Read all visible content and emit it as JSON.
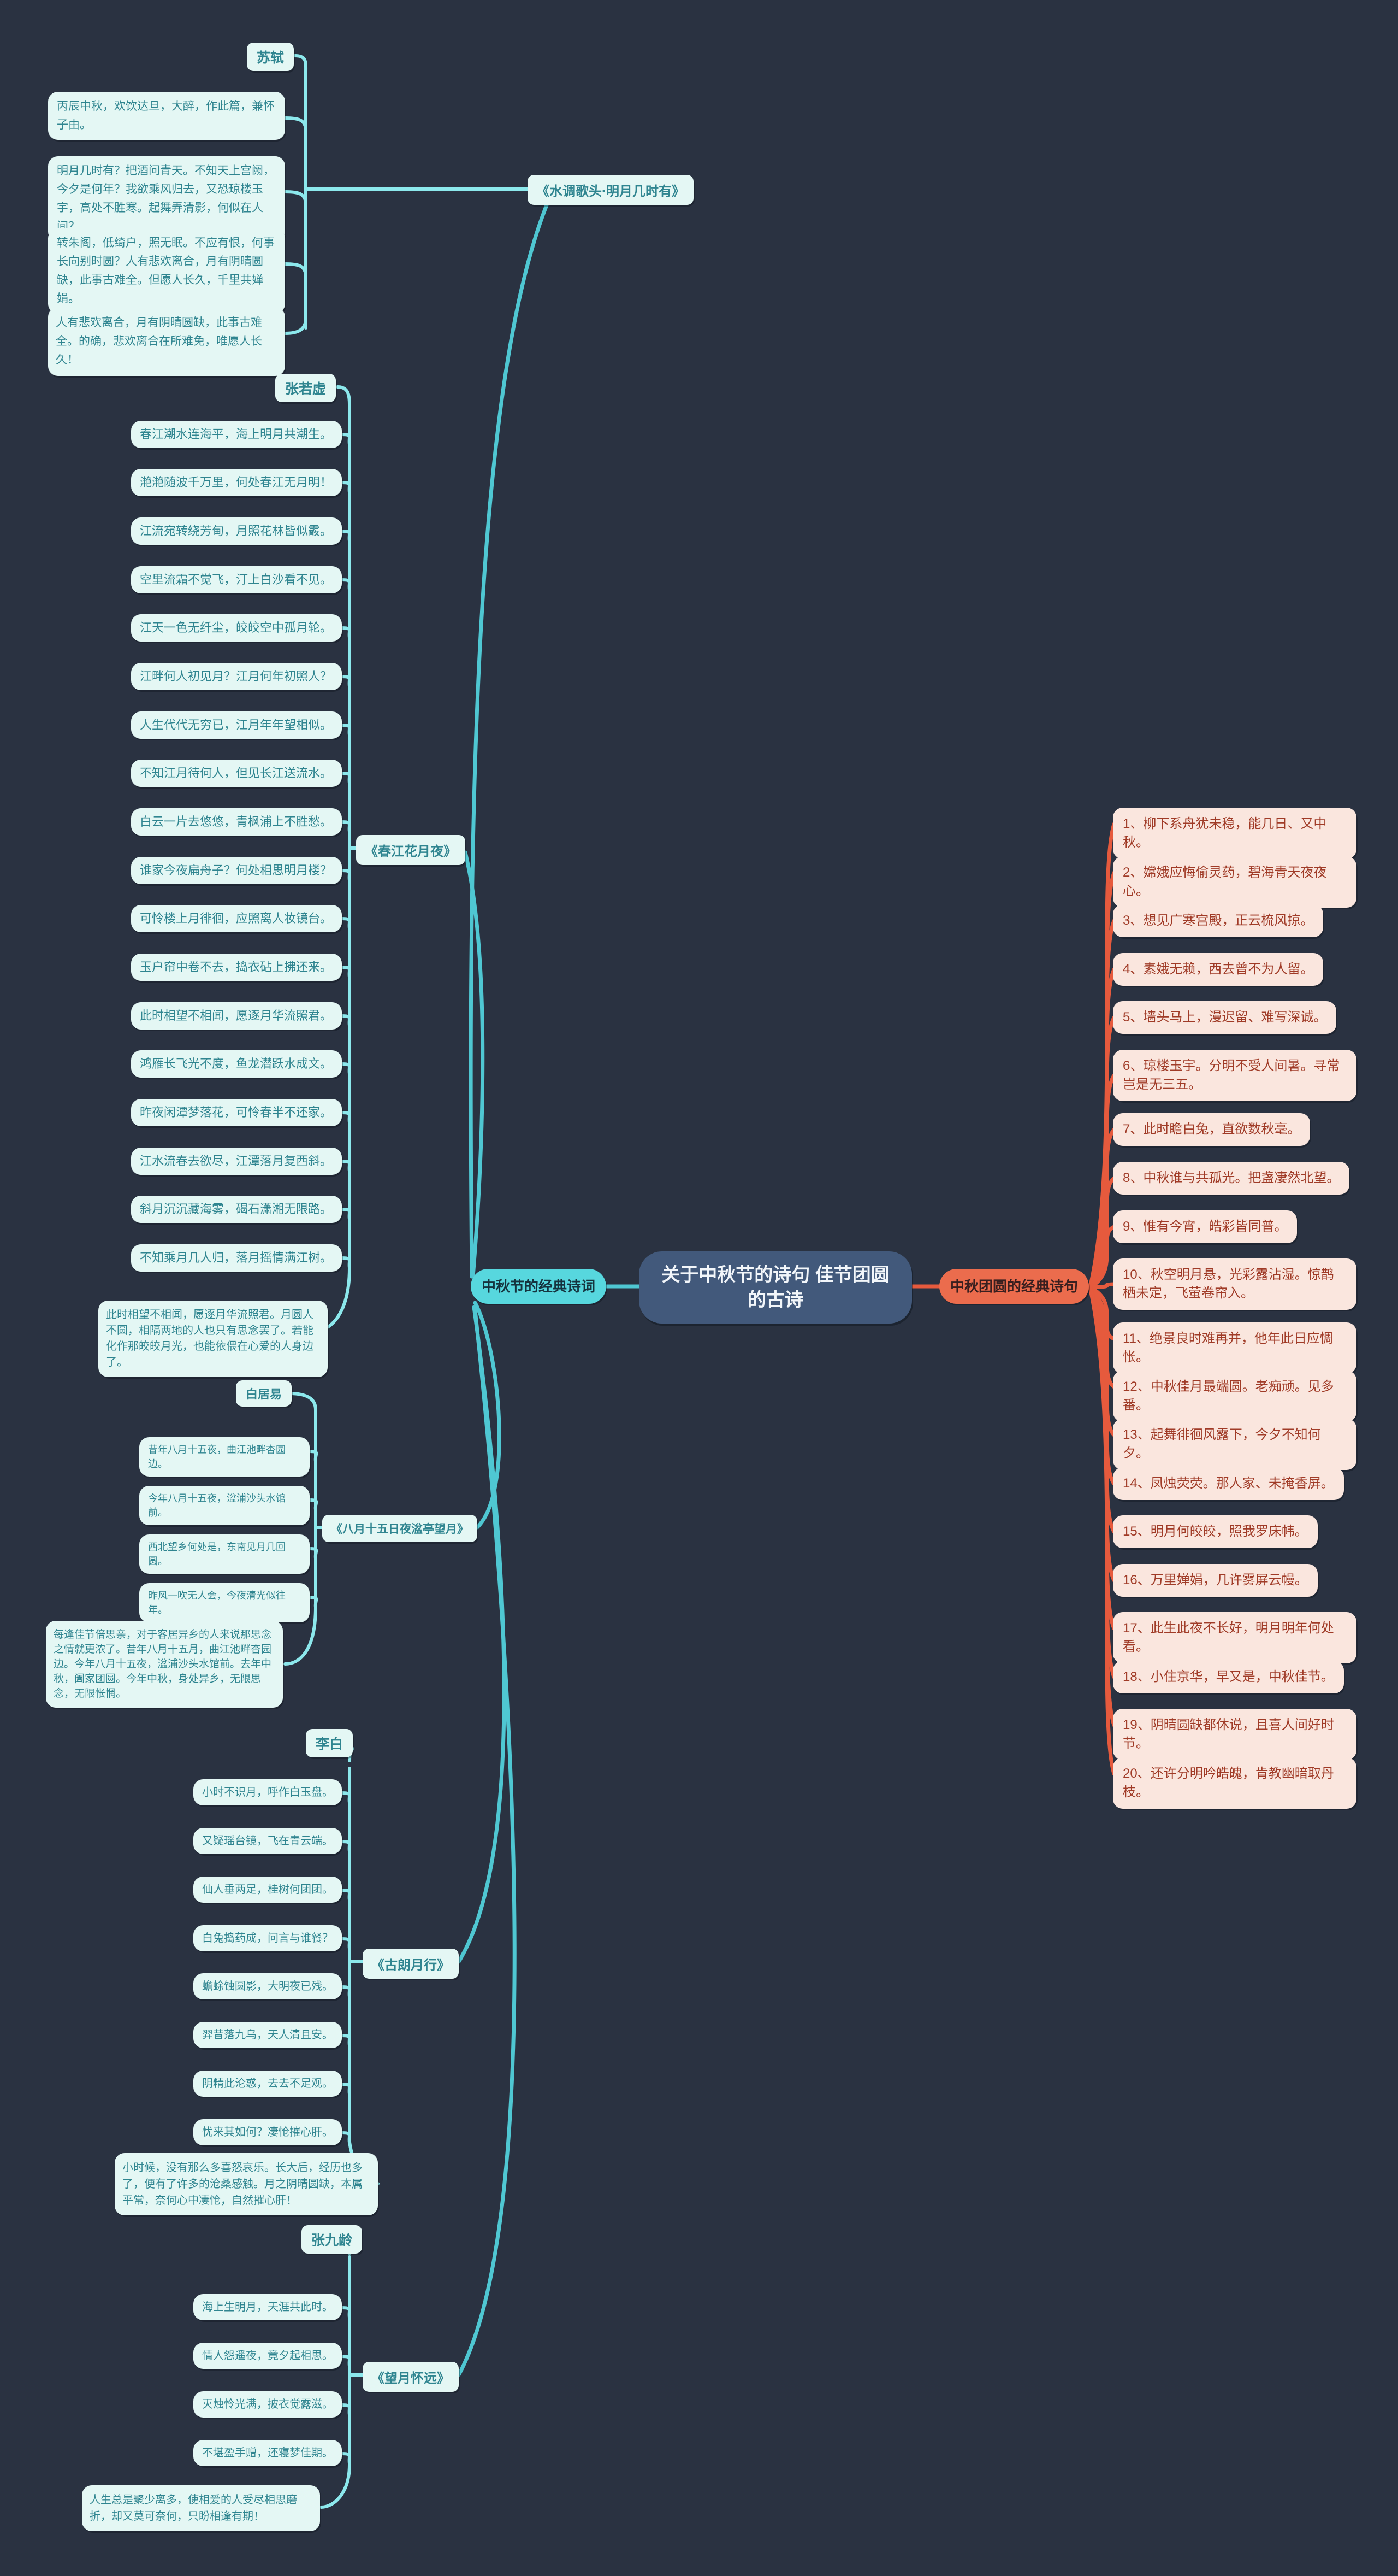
{
  "colors": {
    "background": "#2a3241",
    "cyan_box": "#e4f7f4",
    "cyan_text": "#2f8590",
    "cyan_line": "#8ce8ec",
    "cyan_dark": "#4fc7d2",
    "teal_pill": "#57d7de",
    "orange_pill": "#eb6c4d",
    "red_line": "#e65a3d",
    "pink_box": "#fae6de",
    "pink_text": "#a03b27",
    "center_node": "#42597b"
  },
  "center": {
    "main": "关于中秋节的诗句 佳节团圆的古诗",
    "left_pill": "中秋节的经典诗词",
    "right_pill": "中秋团圆的经典诗句"
  },
  "left": {
    "poets": [
      {
        "name": "苏轼",
        "work": "《水调歌头·明月几时有》",
        "lines": [
          "丙辰中秋，欢饮达旦，大醉，作此篇，兼怀子由。",
          "明月几时有？把酒问青天。不知天上宫阙，今夕是何年？我欲乘风归去，又恐琼楼玉宇，高处不胜寒。起舞弄清影，何似在人间？",
          "转朱阁，低绮户，照无眠。不应有恨，何事长向别时圆？人有悲欢离合，月有阴晴圆缺，此事古难全。但愿人长久，千里共婵娟。"
        ],
        "note": "人有悲欢离合，月有阴晴圆缺，此事古难全。的确，悲欢离合在所难免，唯愿人长久！"
      },
      {
        "name": "张若虚",
        "work": "《春江花月夜》",
        "lines": [
          "春江潮水连海平，海上明月共潮生。",
          "滟滟随波千万里，何处春江无月明！",
          "江流宛转绕芳甸，月照花林皆似霰。",
          "空里流霜不觉飞，汀上白沙看不见。",
          "江天一色无纤尘，皎皎空中孤月轮。",
          "江畔何人初见月？江月何年初照人？",
          "人生代代无穷已，江月年年望相似。",
          "不知江月待何人，但见长江送流水。",
          "白云一片去悠悠，青枫浦上不胜愁。",
          "谁家今夜扁舟子？何处相思明月楼？",
          "可怜楼上月徘徊，应照离人妆镜台。",
          "玉户帘中卷不去，捣衣砧上拂还来。",
          "此时相望不相闻，愿逐月华流照君。",
          "鸿雁长飞光不度，鱼龙潜跃水成文。",
          "昨夜闲潭梦落花，可怜春半不还家。",
          "江水流春去欲尽，江潭落月复西斜。",
          "斜月沉沉藏海雾，碣石潇湘无限路。",
          "不知乘月几人归，落月摇情满江树。"
        ],
        "note": "此时相望不相闻，愿逐月华流照君。月圆人不圆，相隔两地的人也只有思念罢了。若能化作那皎皎月光，也能依偎在心爱的人身边了。"
      },
      {
        "name": "白居易",
        "work": "《八月十五日夜湓亭望月》",
        "lines": [
          "昔年八月十五夜，曲江池畔杏园边。",
          "今年八月十五夜，湓浦沙头水馆前。",
          "西北望乡何处是，东南见月几回圆。",
          "昨风一吹无人会，今夜清光似往年。"
        ],
        "note": "每逢佳节倍思亲，对于客居异乡的人来说那思念之情就更浓了。昔年八月十五月，曲江池畔杏园边。今年八月十五夜，湓浦沙头水馆前。去年中秋，阖家团圆。今年中秋，身处异乡，无限思念，无限怅惘。"
      },
      {
        "name": "李白",
        "work": "《古朗月行》",
        "lines": [
          "小时不识月，呼作白玉盘。",
          "又疑瑶台镜，飞在青云端。",
          "仙人垂两足，桂树何团团。",
          "白兔捣药成，问言与谁餐？",
          "蟾蜍蚀圆影，大明夜已残。",
          "羿昔落九乌，天人清且安。",
          "阴精此沦惑，去去不足观。",
          "忧来其如何？凄怆摧心肝。"
        ],
        "note": "小时候，没有那么多喜怒哀乐。长大后，经历也多了，便有了许多的沧桑感触。月之阴晴圆缺，本属平常，奈何心中凄怆，自然摧心肝！"
      },
      {
        "name": "张九龄",
        "work": "《望月怀远》",
        "lines": [
          "海上生明月，天涯共此时。",
          "情人怨遥夜，竟夕起相思。",
          "灭烛怜光满，披衣觉露滋。",
          "不堪盈手赠，还寝梦佳期。"
        ],
        "note": "人生总是聚少离多，使相爱的人受尽相思磨折，却又莫可奈何，只盼相逢有期！"
      }
    ]
  },
  "right": {
    "items": [
      "1、柳下系舟犹未稳，能几日、又中秋。",
      "2、嫦娥应悔偷灵药，碧海青天夜夜心。",
      "3、想见广寒宫殿，正云梳风掠。",
      "4、素娥无赖，西去曾不为人留。",
      "5、墙头马上，漫迟留、难写深诚。",
      "6、琼楼玉宇。分明不受人间暑。寻常岂是无三五。",
      "7、此时瞻白兔，直欲数秋毫。",
      "8、中秋谁与共孤光。把盏凄然北望。",
      "9、惟有今宵，皓彩皆同普。",
      "10、秋空明月悬，光彩露沾湿。惊鹊栖未定，飞萤卷帘入。",
      "11、绝景良时难再并，他年此日应惆怅。",
      "12、中秋佳月最端圆。老痴顽。见多番。",
      "13、起舞徘徊风露下，今夕不知何夕。",
      "14、凤烛荧荧。那人家、未掩香屏。",
      "15、明月何皎皎，照我罗床帏。",
      "16、万里婵娟，几许雾屏云幔。",
      "17、此生此夜不长好，明月明年何处看。",
      "18、小住京华，早又是，中秋佳节。",
      "19、阴晴圆缺都休说，且喜人间好时节。",
      "20、还许分明吟皓魄，肯教幽暗取丹枝。"
    ]
  }
}
